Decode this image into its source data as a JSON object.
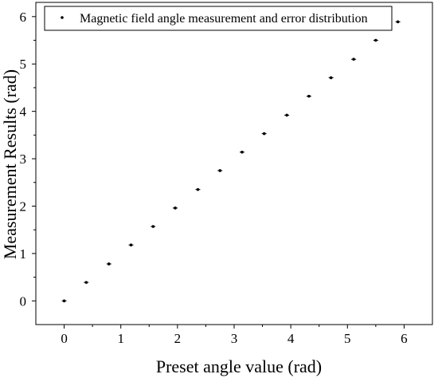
{
  "chart_data": {
    "type": "scatter",
    "title": "",
    "xlabel": "Preset angle value (rad)",
    "ylabel": "Measurement Results (rad)",
    "xlim": [
      -0.5,
      6.5
    ],
    "ylim": [
      -0.5,
      6.3
    ],
    "x_ticks": [
      0,
      1,
      2,
      3,
      4,
      5,
      6
    ],
    "y_ticks": [
      0,
      1,
      2,
      3,
      4,
      5,
      6
    ],
    "grid": false,
    "legend_position": "top-right",
    "series": [
      {
        "name": "Magnetic field angle measurement and error distribution",
        "color": "#000000",
        "points": [
          {
            "x": 0.0,
            "y": 0.0,
            "err": 0.02
          },
          {
            "x": 0.39,
            "y": 0.39,
            "err": 0.02
          },
          {
            "x": 0.79,
            "y": 0.78,
            "err": 0.02
          },
          {
            "x": 1.18,
            "y": 1.18,
            "err": 0.02
          },
          {
            "x": 1.57,
            "y": 1.57,
            "err": 0.02
          },
          {
            "x": 1.96,
            "y": 1.96,
            "err": 0.02
          },
          {
            "x": 2.36,
            "y": 2.35,
            "err": 0.02
          },
          {
            "x": 2.75,
            "y": 2.75,
            "err": 0.02
          },
          {
            "x": 3.14,
            "y": 3.14,
            "err": 0.02
          },
          {
            "x": 3.53,
            "y": 3.53,
            "err": 0.02
          },
          {
            "x": 3.93,
            "y": 3.92,
            "err": 0.02
          },
          {
            "x": 4.32,
            "y": 4.32,
            "err": 0.02
          },
          {
            "x": 4.71,
            "y": 4.71,
            "err": 0.02
          },
          {
            "x": 5.11,
            "y": 5.1,
            "err": 0.02
          },
          {
            "x": 5.5,
            "y": 5.5,
            "err": 0.02
          },
          {
            "x": 5.89,
            "y": 5.89,
            "err": 0.02
          }
        ]
      }
    ]
  }
}
